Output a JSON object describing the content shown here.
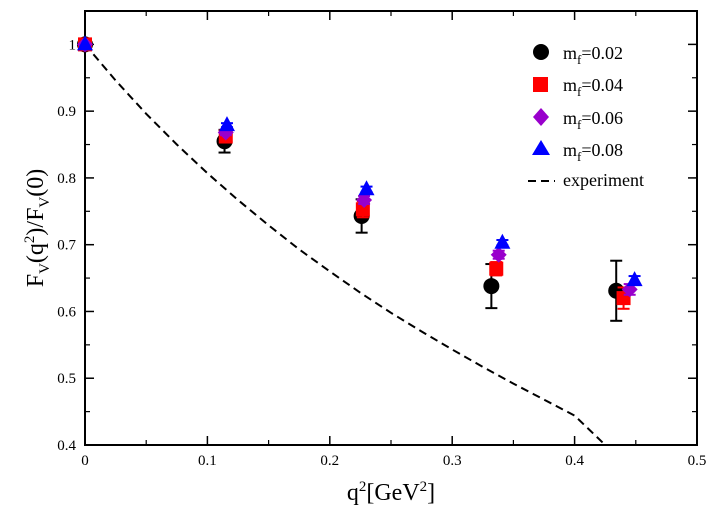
{
  "chart_data": {
    "type": "scatter",
    "title": "",
    "xlabel": {
      "base": "q",
      "sup": "2",
      "rest": "[GeV",
      "sup2": "2",
      "end": "]"
    },
    "ylabel": {
      "p1": "F",
      "s1": "V",
      "p2": "(q",
      "s2": "2",
      "p3": ")/F",
      "s3": "V",
      "p4": "(0)"
    },
    "xlim": [
      0,
      0.5
    ],
    "ylim": [
      0.4,
      1.05
    ],
    "xticks": [
      0,
      0.1,
      0.2,
      0.3,
      0.4,
      0.5
    ],
    "xtick_labels": [
      "0",
      "0.1",
      "0.2",
      "0.3",
      "0.4",
      "0.5"
    ],
    "yticks": [
      0.4,
      0.5,
      0.6,
      0.7,
      0.8,
      0.9,
      1.0
    ],
    "ytick_labels": [
      "0.4",
      "0.5",
      "0.6",
      "0.7",
      "0.8",
      "0.9",
      "1"
    ],
    "grid": false,
    "legend_position": "top-right",
    "series": [
      {
        "name": "m_f=0.02",
        "label_main": "m",
        "label_sub": "f",
        "label_rest": "=0.02",
        "marker": "circle",
        "color": "#000000",
        "points": [
          {
            "x": 0.0,
            "y": 1.0,
            "err": 0.0
          },
          {
            "x": 0.114,
            "y": 0.855,
            "err": 0.017
          },
          {
            "x": 0.226,
            "y": 0.743,
            "err": 0.025
          },
          {
            "x": 0.332,
            "y": 0.638,
            "err": 0.033
          },
          {
            "x": 0.434,
            "y": 0.631,
            "err": 0.045
          }
        ]
      },
      {
        "name": "m_f=0.04",
        "label_main": "m",
        "label_sub": "f",
        "label_rest": "=0.04",
        "marker": "square",
        "color": "#ff0000",
        "points": [
          {
            "x": 0.0,
            "y": 1.0,
            "err": 0.0
          },
          {
            "x": 0.115,
            "y": 0.862,
            "err": 0.006
          },
          {
            "x": 0.227,
            "y": 0.753,
            "err": 0.012
          },
          {
            "x": 0.336,
            "y": 0.664,
            "err": 0.01
          },
          {
            "x": 0.44,
            "y": 0.62,
            "err": 0.016
          }
        ]
      },
      {
        "name": "m_f=0.06",
        "label_main": "m",
        "label_sub": "f",
        "label_rest": "=0.06",
        "marker": "diamond",
        "color": "#9900cc",
        "points": [
          {
            "x": 0.0,
            "y": 1.0,
            "err": 0.0
          },
          {
            "x": 0.115,
            "y": 0.868,
            "err": 0.004
          },
          {
            "x": 0.228,
            "y": 0.767,
            "err": 0.006
          },
          {
            "x": 0.338,
            "y": 0.685,
            "err": 0.006
          },
          {
            "x": 0.445,
            "y": 0.633,
            "err": 0.008
          }
        ]
      },
      {
        "name": "m_f=0.08",
        "label_main": "m",
        "label_sub": "f",
        "label_rest": "=0.08",
        "marker": "triangle",
        "color": "#0000ff",
        "points": [
          {
            "x": 0.0,
            "y": 1.0,
            "err": 0.0
          },
          {
            "x": 0.116,
            "y": 0.879,
            "err": 0.003
          },
          {
            "x": 0.23,
            "y": 0.783,
            "err": 0.004
          },
          {
            "x": 0.341,
            "y": 0.703,
            "err": 0.004
          },
          {
            "x": 0.449,
            "y": 0.647,
            "err": 0.006
          }
        ]
      }
    ],
    "experiment": {
      "name": "experiment",
      "style": "dashed",
      "color": "#000000",
      "x": [
        0.0,
        0.025,
        0.05,
        0.075,
        0.1,
        0.125,
        0.15,
        0.175,
        0.2,
        0.225,
        0.25,
        0.275,
        0.3,
        0.325,
        0.35,
        0.375,
        0.4,
        0.425
      ],
      "y": [
        1.0,
        0.946,
        0.896,
        0.85,
        0.807,
        0.767,
        0.729,
        0.693,
        0.66,
        0.628,
        0.598,
        0.57,
        0.543,
        0.517,
        0.492,
        0.468,
        0.444,
        0.4
      ]
    }
  }
}
